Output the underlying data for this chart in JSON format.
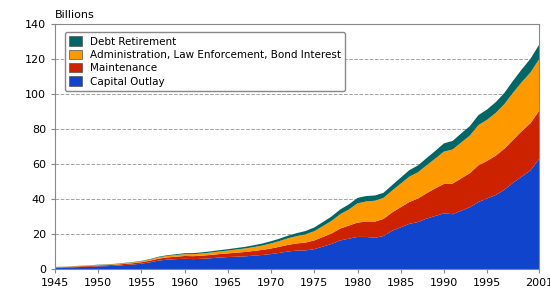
{
  "years": [
    1945,
    1946,
    1947,
    1948,
    1949,
    1950,
    1951,
    1952,
    1953,
    1954,
    1955,
    1956,
    1957,
    1958,
    1959,
    1960,
    1961,
    1962,
    1963,
    1964,
    1965,
    1966,
    1967,
    1968,
    1969,
    1970,
    1971,
    1972,
    1973,
    1974,
    1975,
    1976,
    1977,
    1978,
    1979,
    1980,
    1981,
    1982,
    1983,
    1984,
    1985,
    1986,
    1987,
    1988,
    1989,
    1990,
    1991,
    1992,
    1993,
    1994,
    1995,
    1996,
    1997,
    1998,
    1999,
    2000,
    2001
  ],
  "capital_outlay": [
    0.8,
    0.9,
    1.1,
    1.3,
    1.4,
    1.7,
    1.8,
    2.0,
    2.4,
    2.7,
    3.2,
    4.0,
    5.0,
    5.5,
    5.8,
    6.0,
    5.8,
    6.0,
    6.3,
    6.7,
    7.0,
    7.2,
    7.4,
    7.8,
    8.2,
    8.7,
    9.4,
    10.2,
    10.7,
    10.8,
    11.5,
    13.0,
    14.5,
    16.5,
    17.5,
    18.5,
    18.5,
    18.0,
    19.0,
    22.0,
    24.0,
    26.0,
    27.0,
    29.0,
    30.5,
    32.0,
    31.5,
    33.5,
    35.5,
    38.5,
    40.5,
    42.5,
    45.5,
    49.5,
    53.0,
    56.5,
    63.0
  ],
  "maintenance": [
    0.3,
    0.32,
    0.35,
    0.4,
    0.45,
    0.5,
    0.55,
    0.6,
    0.65,
    0.75,
    0.85,
    0.95,
    1.1,
    1.3,
    1.4,
    1.6,
    1.7,
    1.8,
    1.9,
    2.0,
    2.1,
    2.3,
    2.5,
    2.7,
    2.9,
    3.2,
    3.5,
    3.8,
    4.1,
    4.5,
    5.0,
    5.5,
    6.0,
    6.8,
    7.5,
    8.2,
    8.8,
    9.2,
    9.8,
    10.5,
    11.5,
    12.5,
    13.5,
    14.5,
    15.8,
    16.8,
    17.5,
    18.5,
    19.5,
    21.0,
    21.5,
    22.5,
    23.5,
    24.5,
    26.0,
    27.0,
    27.5
  ],
  "admin_law_bond": [
    0.15,
    0.17,
    0.2,
    0.23,
    0.26,
    0.3,
    0.33,
    0.36,
    0.4,
    0.45,
    0.5,
    0.6,
    0.75,
    0.85,
    0.95,
    1.05,
    1.15,
    1.25,
    1.35,
    1.45,
    1.6,
    1.8,
    2.0,
    2.2,
    2.5,
    2.9,
    3.3,
    3.8,
    4.2,
    4.7,
    5.3,
    6.2,
    7.2,
    8.2,
    9.2,
    11.0,
    11.5,
    12.0,
    12.0,
    12.5,
    13.5,
    14.5,
    15.0,
    16.0,
    17.0,
    18.5,
    19.5,
    20.5,
    21.5,
    23.0,
    23.5,
    24.5,
    25.5,
    27.0,
    28.0,
    29.0,
    29.5
  ],
  "debt_retirement": [
    0.08,
    0.09,
    0.1,
    0.12,
    0.14,
    0.15,
    0.17,
    0.18,
    0.2,
    0.23,
    0.26,
    0.3,
    0.35,
    0.4,
    0.45,
    0.55,
    0.6,
    0.65,
    0.7,
    0.75,
    0.8,
    0.85,
    0.95,
    1.05,
    1.15,
    1.25,
    1.35,
    1.5,
    1.7,
    1.9,
    2.1,
    2.3,
    2.5,
    2.7,
    2.9,
    3.1,
    3.1,
    3.0,
    2.9,
    3.1,
    3.4,
    3.7,
    3.9,
    4.1,
    4.4,
    4.7,
    4.9,
    5.2,
    5.4,
    5.7,
    5.9,
    6.1,
    6.4,
    6.8,
    7.3,
    7.8,
    8.3
  ],
  "color_capital_outlay": "#1144cc",
  "color_maintenance": "#cc2200",
  "color_admin_law_bond": "#ff9900",
  "color_debt_retirement": "#006666",
  "ylabel": "Billions",
  "ylim": [
    0,
    140
  ],
  "xlim": [
    1945,
    2001
  ],
  "yticks": [
    0,
    20,
    40,
    60,
    80,
    100,
    120,
    140
  ],
  "xticks": [
    1945,
    1950,
    1955,
    1960,
    1965,
    1970,
    1975,
    1980,
    1985,
    1990,
    1995,
    2001
  ],
  "legend_labels": [
    "Debt Retirement",
    "Administration, Law Enforcement, Bond Interest",
    "Maintenance",
    "Capital Outlay"
  ],
  "legend_colors": [
    "#006666",
    "#ff9900",
    "#cc2200",
    "#1144cc"
  ],
  "grid_color": "#999999"
}
